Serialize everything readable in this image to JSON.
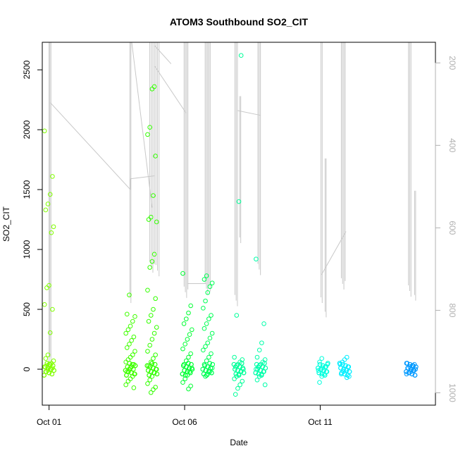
{
  "chart_data": {
    "type": "scatter",
    "title": "ATOM3 Southbound SO2_CIT",
    "xlabel": "Date",
    "ylabel": "SO2_CIT",
    "x_ticks": [
      "Oct 01",
      "Oct 06",
      "Oct 11"
    ],
    "x_tick_days": [
      1,
      6,
      11
    ],
    "xlim_days": [
      0.75,
      15.25
    ],
    "ylim": [
      -300,
      2730
    ],
    "y_ticks": [
      0,
      500,
      1000,
      1500,
      2000,
      2500
    ],
    "right_axis": {
      "label": "",
      "inverted": true,
      "ylim": [
        1030,
        150
      ],
      "ticks": [
        200,
        400,
        600,
        800,
        1000
      ],
      "color": "#b0b0b0"
    },
    "grid": false,
    "legend": "none",
    "series": [
      {
        "day": 1.0,
        "color": "#80ff00",
        "values": [
          1990,
          1610,
          1460,
          1380,
          1330,
          1190,
          1140,
          700,
          680,
          540,
          500,
          305,
          120,
          90,
          70,
          50,
          40,
          30,
          20,
          10,
          0,
          -10,
          -20
        ]
      },
      {
        "day": 4.0,
        "color": "#40ff00",
        "values": [
          620,
          460,
          440,
          400,
          360,
          330,
          300,
          270,
          240,
          210,
          180,
          150,
          120,
          100,
          80,
          60,
          40,
          20,
          0,
          -20,
          -40,
          -60,
          -80,
          -100,
          -130,
          -155
        ]
      },
      {
        "day": 4.8,
        "color": "#33ff00",
        "values": [
          2360,
          2340,
          2020,
          1960,
          1780,
          1450,
          1270,
          1250,
          1230,
          960,
          900,
          850,
          660,
          590,
          500,
          450,
          400,
          350,
          300,
          250,
          200,
          150,
          120,
          90,
          60,
          30,
          0,
          -30,
          -60,
          -90,
          -120,
          -150,
          -170,
          -195
        ]
      },
      {
        "day": 6.1,
        "color": "#00ff33",
        "values": [
          800,
          530,
          470,
          420,
          380,
          330,
          290,
          250,
          210,
          170,
          130,
          100,
          70,
          40,
          10,
          -20,
          -50,
          -80,
          -110,
          -140,
          -165
        ]
      },
      {
        "day": 6.85,
        "color": "#00ff55",
        "values": [
          780,
          750,
          720,
          690,
          640,
          570,
          510,
          450,
          420,
          380,
          340,
          300,
          260,
          220,
          190,
          160,
          130,
          100,
          70,
          40,
          10,
          -20,
          -40,
          -60
        ]
      },
      {
        "day": 8.0,
        "color": "#00ff99",
        "values": [
          2620,
          1400,
          450,
          100,
          80,
          60,
          40,
          20,
          0,
          -20,
          -40,
          -60,
          -80,
          -100,
          -130,
          -160,
          -210
        ]
      },
      {
        "day": 8.8,
        "color": "#00ffaa",
        "values": [
          920,
          380,
          220,
          160,
          100,
          80,
          60,
          40,
          20,
          0,
          -20,
          -40,
          -60,
          -90,
          -130
        ]
      },
      {
        "day": 11.1,
        "color": "#00ffdd",
        "values": [
          90,
          60,
          40,
          20,
          10,
          0,
          -10,
          -20,
          -40,
          -60,
          -110
        ]
      },
      {
        "day": 11.9,
        "color": "#00eeff",
        "values": [
          100,
          80,
          60,
          40,
          20,
          0,
          -20,
          -40,
          -60,
          -70
        ]
      },
      {
        "day": 14.35,
        "color": "#0099ff",
        "values": [
          50,
          40,
          30,
          20,
          10,
          0,
          -10,
          -20,
          -30,
          -40
        ]
      }
    ]
  }
}
